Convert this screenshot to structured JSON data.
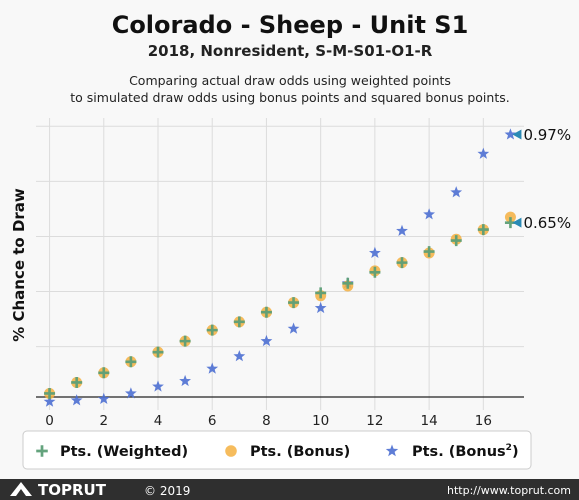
{
  "header": {
    "title": "Colorado - Sheep - Unit S1",
    "subtitle": "2018, Nonresident, S-M-S01-O1-R",
    "description_line1": "Comparing actual draw odds using weighted points",
    "description_line2": "to simulated draw odds using bonus points and squared bonus points."
  },
  "chart_data": {
    "type": "scatter",
    "xlabel": "",
    "ylabel": "% Chance to Draw",
    "xlim": [
      -0.5,
      17.5
    ],
    "ylim": [
      -0.03,
      1.03
    ],
    "x_ticks": [
      "0",
      "2",
      "4",
      "6",
      "8",
      "10",
      "12",
      "14",
      "16"
    ],
    "grid": true,
    "y_tick_labels_shown": false,
    "series": [
      {
        "name": "Pts. (Weighted)",
        "marker": "plus",
        "color": "#5c9e76",
        "x": [
          0,
          1,
          2,
          3,
          4,
          5,
          6,
          7,
          8,
          9,
          10,
          11,
          12,
          13,
          14,
          15,
          16,
          17
        ],
        "y": [
          0.03,
          0.07,
          0.105,
          0.145,
          0.18,
          0.22,
          0.26,
          0.29,
          0.325,
          0.36,
          0.395,
          0.43,
          0.47,
          0.505,
          0.545,
          0.585,
          0.625,
          0.65
        ]
      },
      {
        "name": "Pts. (Bonus)",
        "marker": "circle",
        "color": "#f5b041",
        "x": [
          0,
          1,
          2,
          3,
          4,
          5,
          6,
          7,
          8,
          9,
          10,
          11,
          12,
          13,
          14,
          15,
          16,
          17
        ],
        "y": [
          0.03,
          0.07,
          0.105,
          0.145,
          0.18,
          0.22,
          0.26,
          0.29,
          0.325,
          0.36,
          0.385,
          0.42,
          0.475,
          0.505,
          0.54,
          0.59,
          0.625,
          0.67
        ]
      },
      {
        "name": "Pts. (Bonus²)",
        "marker": "star",
        "color": "#4d6fd1",
        "x": [
          0,
          1,
          2,
          3,
          4,
          5,
          6,
          7,
          8,
          9,
          10,
          11,
          12,
          13,
          14,
          15,
          16,
          17
        ],
        "y": [
          0.0,
          0.005,
          0.01,
          0.03,
          0.055,
          0.075,
          0.12,
          0.165,
          0.22,
          0.265,
          0.34,
          0.43,
          0.54,
          0.62,
          0.68,
          0.76,
          0.9,
          0.97
        ]
      }
    ],
    "annotations": [
      {
        "text": "0.97%",
        "x": 17,
        "y": 0.97,
        "color": "#2a8ab5"
      },
      {
        "text": "0.65%",
        "x": 17,
        "y": 0.65,
        "color": "#2a8ab5"
      }
    ],
    "legend": {
      "position": "bottom",
      "items": [
        {
          "label": "Pts. (Weighted)",
          "marker": "plus",
          "color": "#5c9e76"
        },
        {
          "label": "Pts. (Bonus)",
          "marker": "circle",
          "color": "#f5b041"
        },
        {
          "label_main": "Pts. (Bonus",
          "label_sup": "2",
          "label_end": ")",
          "marker": "star",
          "color": "#4d6fd1"
        }
      ]
    }
  },
  "footer": {
    "brand": "TOPRUT",
    "copyright": "© 2019",
    "url": "http://www.toprut.com",
    "background": "#2f2f2f"
  }
}
